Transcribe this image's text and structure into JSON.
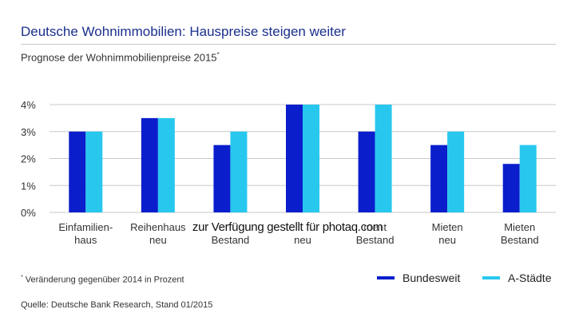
{
  "header": {
    "title": "Deutsche Wohnimmobilien: Hauspreise steigen weiter",
    "subtitle": "Prognose der Wohnimmobilienpreise 2015",
    "subtitle_marker": "*"
  },
  "footer": {
    "footnote_marker": "*",
    "footnote": "Veränderung gegenüber 2014 in Prozent",
    "source": "Quelle: Deutsche Bank Research, Stand 01/2015"
  },
  "watermark": "zur Verfügung gestellt für photaq.com",
  "legend": {
    "bundesweit": "Bundesweit",
    "a_staedte": "A-Städte"
  },
  "colors": {
    "bundesweit": "#0a1ecc",
    "a_staedte": "#28c8ee",
    "title": "#1a2f8c",
    "grid": "#c8c8c8"
  },
  "chart_data": {
    "type": "bar",
    "categories": [
      [
        "Einfamilien-",
        "haus"
      ],
      [
        "Reihenhaus",
        "neu"
      ],
      [
        "",
        "Bestand"
      ],
      [
        "",
        "neu"
      ],
      [
        "ment",
        "Bestand"
      ],
      [
        "Mieten",
        "neu"
      ],
      [
        "Mieten",
        "Bestand"
      ]
    ],
    "series": [
      {
        "name": "Bundesweit",
        "values": [
          3.0,
          3.5,
          2.5,
          4.0,
          3.0,
          2.5,
          1.8
        ]
      },
      {
        "name": "A-Städte",
        "values": [
          3.0,
          3.5,
          3.0,
          4.0,
          4.0,
          3.0,
          2.5
        ]
      }
    ],
    "yticks": [
      "0%",
      "1%",
      "2%",
      "3%",
      "4%"
    ],
    "ylim": [
      0,
      4
    ],
    "grid": true,
    "legend_position": "bottom-right"
  }
}
